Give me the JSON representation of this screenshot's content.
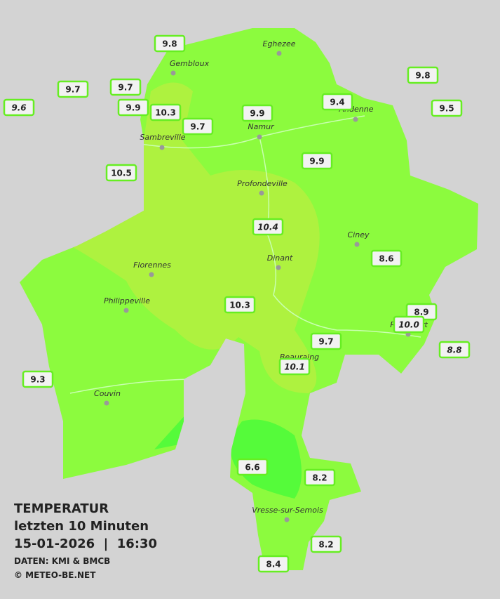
{
  "legend": {
    "title": "TEMPERATUR",
    "period": "letzten 10 Minuten",
    "timestamp": "15-01-2026  |  16:30",
    "source": "DATEN: KMI & BMCB",
    "copyright": "© METEO-BE.NET"
  },
  "towns": [
    "Eghezee",
    "Gembloux",
    "Andenne",
    "Namur",
    "Sambreville",
    "Profondeville",
    "Ciney",
    "Florennes",
    "Dinant",
    "Philippeville",
    "Rochefort",
    "Beauraing",
    "Couvin",
    "Vresse-sur-Semois"
  ],
  "stations": [
    {
      "value": "9.8",
      "italic": false
    },
    {
      "value": "9.7",
      "italic": false
    },
    {
      "value": "9.7",
      "italic": false
    },
    {
      "value": "9.6",
      "italic": true
    },
    {
      "value": "9.9",
      "italic": false
    },
    {
      "value": "10.3",
      "italic": false
    },
    {
      "value": "9.7",
      "italic": false
    },
    {
      "value": "9.9",
      "italic": false
    },
    {
      "value": "9.4",
      "italic": false
    },
    {
      "value": "9.8",
      "italic": false
    },
    {
      "value": "9.5",
      "italic": false
    },
    {
      "value": "10.5",
      "italic": false
    },
    {
      "value": "9.9",
      "italic": false
    },
    {
      "value": "10.4",
      "italic": true
    },
    {
      "value": "8.6",
      "italic": false
    },
    {
      "value": "10.3",
      "italic": false
    },
    {
      "value": "8.9",
      "italic": false
    },
    {
      "value": "10.0",
      "italic": true
    },
    {
      "value": "8.8",
      "italic": true
    },
    {
      "value": "9.7",
      "italic": false
    },
    {
      "value": "10.1",
      "italic": true
    },
    {
      "value": "9.3",
      "italic": false
    },
    {
      "value": "6.6",
      "italic": false
    },
    {
      "value": "8.2",
      "italic": false
    },
    {
      "value": "8.2",
      "italic": false
    },
    {
      "value": "8.4",
      "italic": false
    }
  ]
}
